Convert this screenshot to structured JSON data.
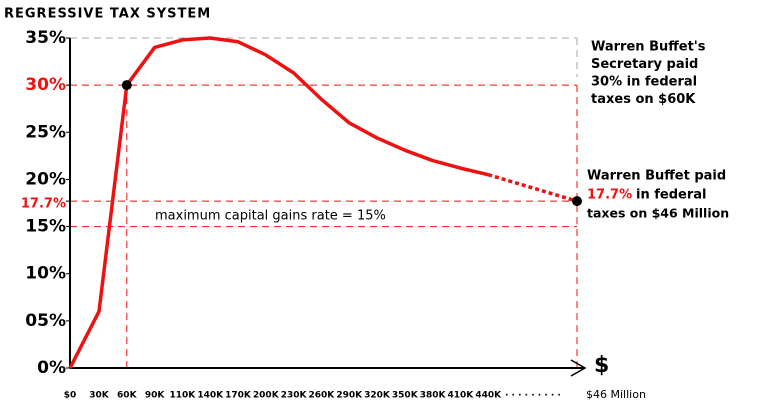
{
  "chart_data": {
    "type": "line",
    "title": "REGRESSIVE TAX SYSTEM",
    "categories": [
      "$0",
      "30K",
      "60K",
      "90K",
      "110K",
      "140K",
      "170K",
      "200K",
      "230K",
      "260K",
      "290K",
      "320K",
      "350K",
      "380K",
      "410K",
      "440K"
    ],
    "series": [
      {
        "color": "#ee1111",
        "values": [
          0,
          6,
          30,
          34,
          34.8,
          35,
          34.6,
          33.2,
          31.3,
          28.5,
          26,
          24.4,
          23.1,
          22,
          21.2,
          20.5
        ]
      }
    ],
    "endpoint": {
      "label": "$46 Million",
      "value": 17.7
    },
    "ellipsis": ". . . . . . . . .",
    "x_axis_symbol": "$",
    "ylim": [
      0,
      35
    ],
    "yticks": [
      {
        "value": 0,
        "label": "0%"
      },
      {
        "value": 5,
        "label": "05%"
      },
      {
        "value": 10,
        "label": "10%"
      },
      {
        "value": 15,
        "label": "15%"
      },
      {
        "value": 17.7,
        "label": "17.7%",
        "color": "#ee1111"
      },
      {
        "value": 20,
        "label": "20%"
      },
      {
        "value": 25,
        "label": "25%"
      },
      {
        "value": 30,
        "label": "30%",
        "color": "#ee1111"
      },
      {
        "value": 35,
        "label": "35%"
      }
    ],
    "reference_lines": [
      {
        "value": 30,
        "color": "#ee1111"
      },
      {
        "value": 17.7,
        "color": "#ee1111"
      },
      {
        "value": 15,
        "color": "#ee1111"
      },
      {
        "value": 35,
        "color": "#aaaaaa"
      }
    ],
    "reference_annotation": "maximum capital gains rate = 15%",
    "secretary_note": [
      "Warren Buffet's",
      "Secretary paid",
      "30% in federal",
      "taxes on $60K"
    ],
    "buffett_note": {
      "line1": "Warren Buffet paid",
      "highlight": "17.7%",
      "line2": "in  federal",
      "line3": "taxes on $46 Million"
    }
  }
}
